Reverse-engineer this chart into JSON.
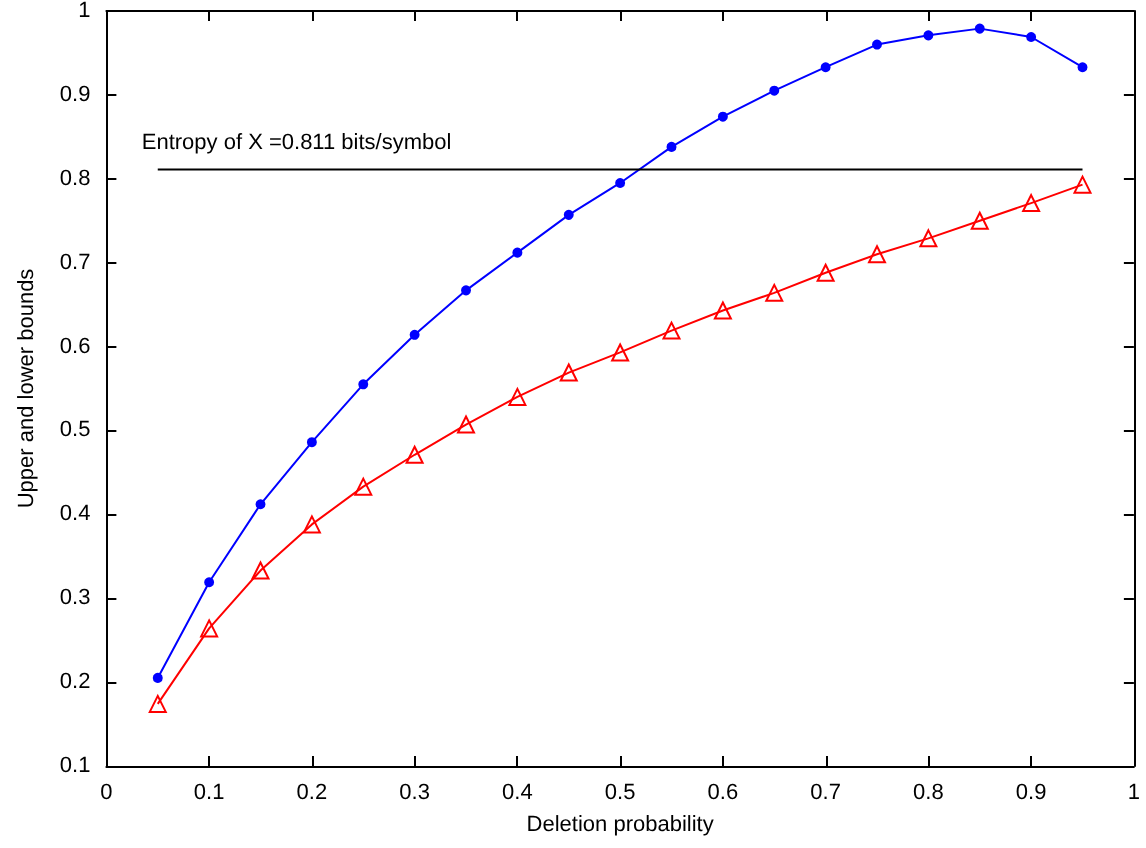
{
  "chart_data": {
    "type": "line",
    "xlabel": "Deletion probability",
    "ylabel": "Upper and lower bounds",
    "annotations": [
      {
        "text": "Entropy of X =0.811 bits/symbol",
        "x": 0.05,
        "y": 0.811
      }
    ],
    "x": [
      0.05,
      0.1,
      0.15,
      0.2,
      0.25,
      0.3,
      0.35,
      0.4,
      0.45,
      0.5,
      0.55,
      0.6,
      0.65,
      0.7,
      0.75,
      0.8,
      0.85,
      0.9,
      0.95
    ],
    "series": [
      {
        "color": "#0000ff",
        "marker": "circle",
        "values": [
          0.205,
          0.319,
          0.412,
          0.486,
          0.555,
          0.614,
          0.667,
          0.712,
          0.757,
          0.795,
          0.838,
          0.874,
          0.905,
          0.933,
          0.96,
          0.971,
          0.979,
          0.969,
          0.933
        ]
      },
      {
        "color": "#ff0000",
        "marker": "triangle",
        "values": [
          0.174,
          0.264,
          0.333,
          0.388,
          0.433,
          0.471,
          0.507,
          0.54,
          0.569,
          0.593,
          0.619,
          0.643,
          0.664,
          0.688,
          0.71,
          0.729,
          0.75,
          0.771,
          0.793
        ]
      },
      {
        "color": "#000000",
        "marker": "none",
        "x": [
          0.05,
          0.95
        ],
        "values": [
          0.811,
          0.811
        ]
      }
    ],
    "xlim": [
      0,
      1
    ],
    "xticks": [
      0,
      0.1,
      0.2,
      0.3,
      0.4,
      0.5,
      0.6,
      0.7,
      0.8,
      0.9,
      1
    ],
    "ylim": [
      0.1,
      1
    ],
    "yticks": [
      0.1,
      0.2,
      0.3,
      0.4,
      0.5,
      0.6,
      0.7,
      0.8,
      0.9,
      1
    ],
    "grid": false,
    "line_style": "solid"
  }
}
